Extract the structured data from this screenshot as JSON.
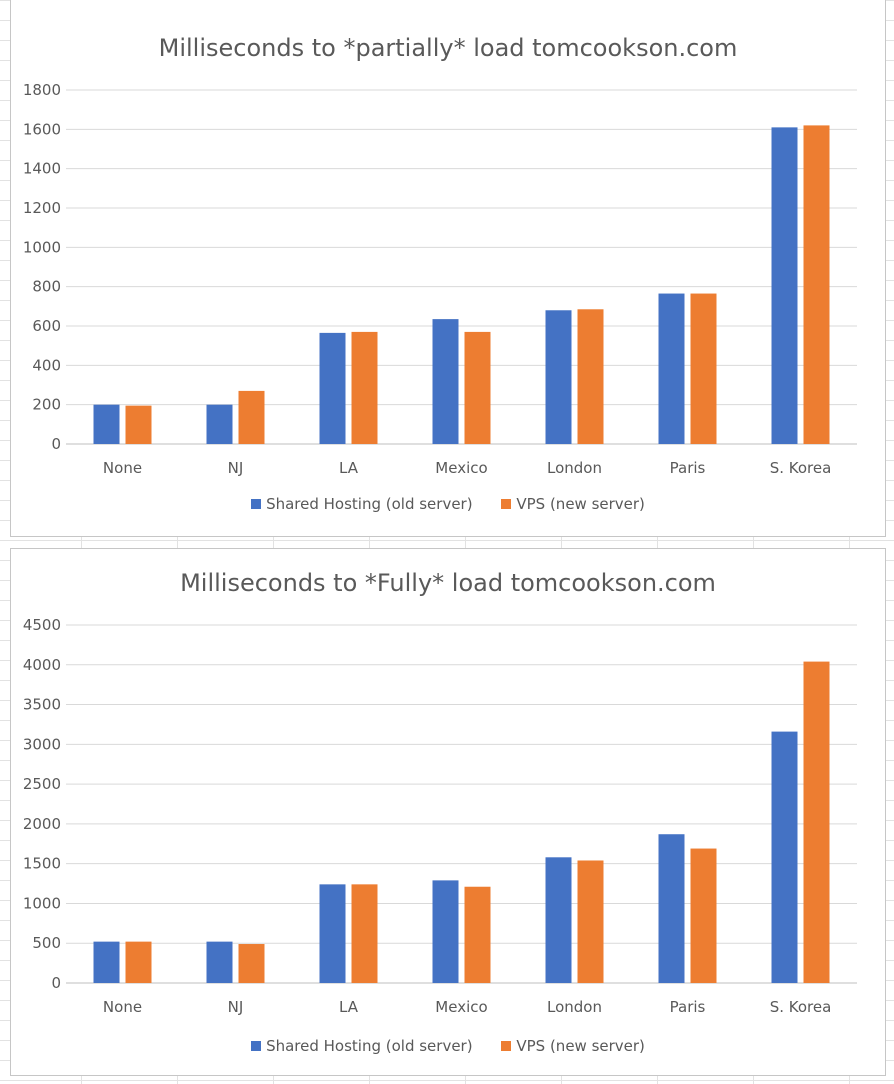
{
  "chart_data": [
    {
      "type": "bar",
      "title": "Milliseconds to *partially* load tomcookson.com",
      "categories": [
        "None",
        "NJ",
        "LA",
        "Mexico",
        "London",
        "Paris",
        "S. Korea"
      ],
      "series": [
        {
          "name": "Shared Hosting (old server)",
          "color": "#4472c4",
          "values": [
            200,
            200,
            565,
            635,
            680,
            765,
            1610
          ]
        },
        {
          "name": "VPS (new server)",
          "color": "#ed7d31",
          "values": [
            195,
            270,
            570,
            570,
            685,
            765,
            1620
          ]
        }
      ],
      "ylim": [
        0,
        1800
      ],
      "yticks": [
        "0",
        "200",
        "400",
        "600",
        "800",
        "1000",
        "1200",
        "1400",
        "1600",
        "1800"
      ],
      "xlabel": "",
      "ylabel": "",
      "grid": true,
      "legend_position": "bottom"
    },
    {
      "type": "bar",
      "title": "Milliseconds to *Fully* load tomcookson.com",
      "categories": [
        "None",
        "NJ",
        "LA",
        "Mexico",
        "London",
        "Paris",
        "S. Korea"
      ],
      "series": [
        {
          "name": "Shared Hosting (old server)",
          "color": "#4472c4",
          "values": [
            520,
            520,
            1240,
            1290,
            1580,
            1870,
            3160
          ]
        },
        {
          "name": "VPS (new server)",
          "color": "#ed7d31",
          "values": [
            520,
            490,
            1240,
            1210,
            1540,
            1690,
            4040
          ]
        }
      ],
      "ylim": [
        0,
        4500
      ],
      "yticks": [
        "0",
        "500",
        "1000",
        "1500",
        "2000",
        "2500",
        "3000",
        "3500",
        "4000",
        "4500"
      ],
      "xlabel": "",
      "ylabel": "",
      "grid": true,
      "legend_position": "bottom"
    }
  ]
}
